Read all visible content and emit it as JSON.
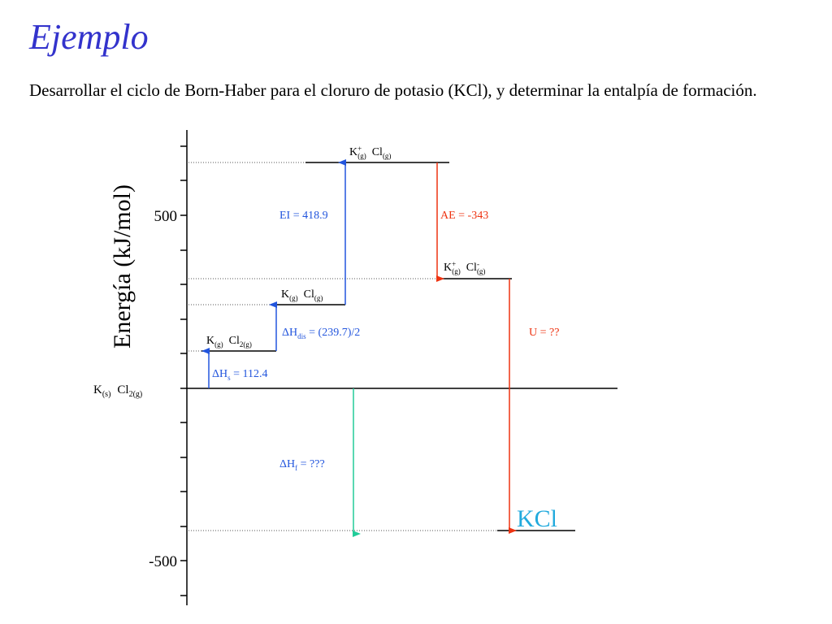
{
  "title": "Ejemplo",
  "statement": "Desarrollar el ciclo de Born-Haber para el cloruro de potasio (KCl), y determinar la entalpía de formación.",
  "colors": {
    "title": "#3333cc",
    "blue_step": "#2255dd",
    "red_step": "#ee3311",
    "formation_arrow": "#22cc99",
    "product_label": "#22aadd"
  },
  "axis": {
    "label": "Energía (kJ/mol)",
    "tick_labels": {
      "t500": "500",
      "tm500": "-500"
    }
  },
  "levels": {
    "ref": {
      "a": "K",
      "a_sub": "(s)",
      "b": "Cl",
      "b_sub": "2(g)"
    },
    "l1": {
      "a": "K",
      "a_sub": "(g)",
      "b": "Cl",
      "b_sub": "2(g)"
    },
    "l2": {
      "a": "K",
      "a_sub": "(g)",
      "b": "Cl",
      "b_sub": "(g)"
    },
    "l3": {
      "a": "K",
      "a_sup": "+",
      "a_sub": "(g)",
      "b": "Cl",
      "b_sub": "(g)"
    },
    "l4": {
      "a": "K",
      "a_sup": "+",
      "a_sub": "(g)",
      "b": "Cl",
      "b_sup": "-",
      "b_sub": "(g)"
    },
    "product": "KCl"
  },
  "steps": {
    "hs": {
      "sym": "ΔH",
      "sub": "s",
      "rest": " = 112.4"
    },
    "hdis": {
      "sym": "ΔH",
      "sub": "dis",
      "rest": " = (239.7)/2"
    },
    "ei": "EI = 418.9",
    "ae": "AE = -343",
    "u": "U = ??",
    "hf": {
      "sym": "ΔH",
      "sub": "f",
      "rest": " = ???"
    }
  }
}
